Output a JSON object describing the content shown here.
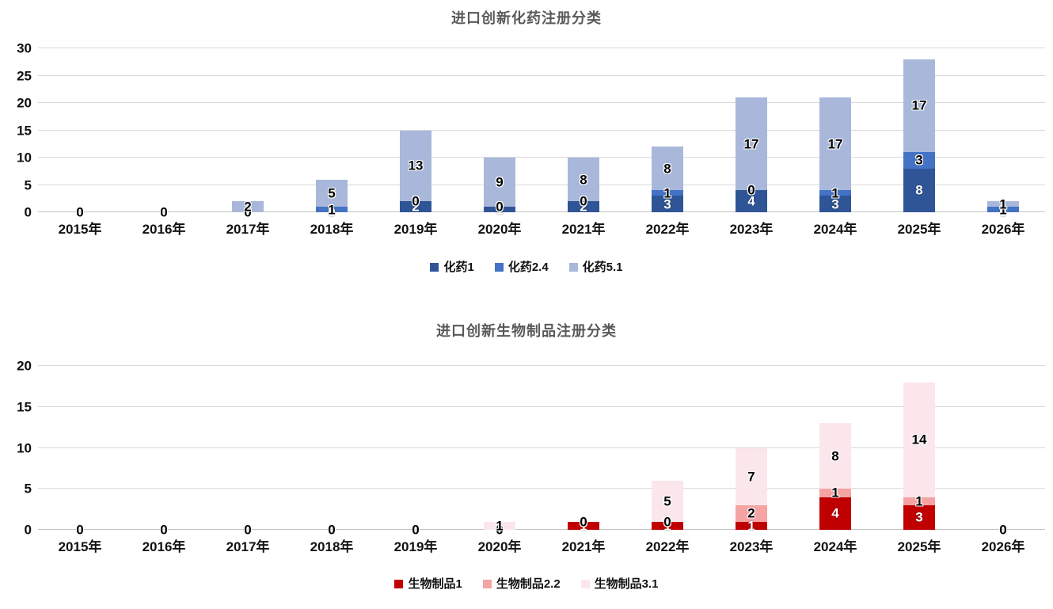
{
  "chart_data": [
    {
      "type": "bar",
      "stacked": true,
      "title": "进口创新化药注册分类",
      "categories": [
        "2015年",
        "2016年",
        "2017年",
        "2018年",
        "2019年",
        "2020年",
        "2021年",
        "2022年",
        "2023年",
        "2024年",
        "2025年",
        "2026年"
      ],
      "series": [
        {
          "name": "化药1",
          "color": "#2F5597",
          "label_style": "light",
          "values": [
            0,
            0,
            0,
            0,
            2,
            1,
            2,
            3,
            4,
            3,
            8,
            0
          ]
        },
        {
          "name": "化药2.4",
          "color": "#4472C4",
          "label_style": "dark",
          "values": [
            0,
            0,
            0,
            1,
            0,
            0,
            0,
            1,
            0,
            1,
            3,
            1
          ]
        },
        {
          "name": "化药5.1",
          "color": "#A9B8DA",
          "label_style": "dark",
          "values": [
            0,
            0,
            2,
            5,
            13,
            9,
            8,
            8,
            17,
            17,
            17,
            1
          ]
        }
      ],
      "y_ticks": [
        0,
        5,
        10,
        15,
        20,
        25,
        30
      ],
      "y_max": 30,
      "xlabel": "",
      "ylabel": "",
      "grid": true,
      "legend_position": "bottom",
      "data_labels": true
    },
    {
      "type": "bar",
      "stacked": true,
      "title": "进口创新生物制品注册分类",
      "categories": [
        "2015年",
        "2016年",
        "2017年",
        "2018年",
        "2019年",
        "2020年",
        "2021年",
        "2022年",
        "2023年",
        "2024年",
        "2025年",
        "2026年"
      ],
      "series": [
        {
          "name": "生物制品1",
          "color": "#C00000",
          "label_style": "light",
          "values": [
            0,
            0,
            0,
            0,
            0,
            0,
            1,
            1,
            1,
            4,
            3,
            0
          ]
        },
        {
          "name": "生物制品2.2",
          "color": "#F5A3A3",
          "label_style": "dark",
          "values": [
            0,
            0,
            0,
            0,
            0,
            0,
            0,
            0,
            2,
            1,
            1,
            0
          ]
        },
        {
          "name": "生物制品3.1",
          "color": "#FBE7EB",
          "label_style": "dark",
          "values": [
            0,
            0,
            0,
            0,
            0,
            1,
            0,
            5,
            7,
            8,
            14,
            0
          ]
        }
      ],
      "y_ticks": [
        0,
        5,
        10,
        15,
        20
      ],
      "y_max": 20,
      "xlabel": "",
      "ylabel": "",
      "grid": true,
      "legend_position": "bottom",
      "data_labels": true
    }
  ]
}
